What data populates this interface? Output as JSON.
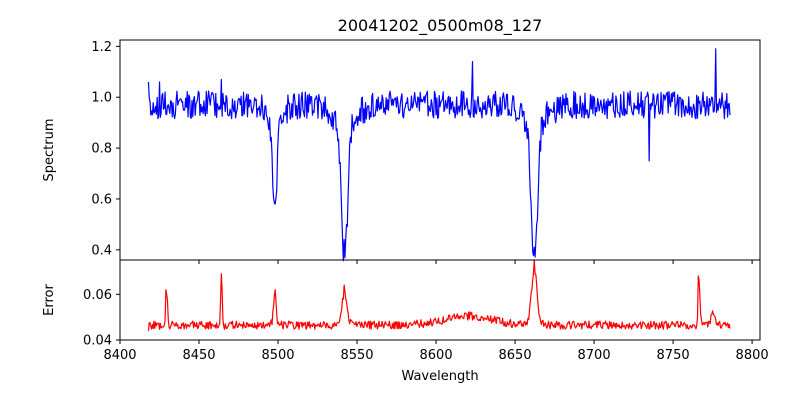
{
  "chart_data": [
    {
      "type": "line",
      "title": "20041202_0500m08_127",
      "xlabel": "",
      "ylabel": "Spectrum",
      "xlim": [
        8400,
        8805
      ],
      "ylim": [
        0.36,
        1.225
      ],
      "xticks": [
        8400,
        8450,
        8500,
        8550,
        8600,
        8650,
        8700,
        8750,
        8800
      ],
      "yticks": [
        0.4,
        0.6,
        0.8,
        1.0,
        1.2
      ],
      "ytick_labels": [
        "0.4",
        "0.6",
        "0.8",
        "1.0",
        "1.2"
      ],
      "grid": false,
      "series": [
        {
          "color": "#0000ff",
          "x_range": [
            8418,
            8786
          ],
          "continuum": 0.97,
          "noise_amplitude": 0.055,
          "features": [
            {
              "center": 8498.0,
              "depth": 0.39,
              "width": 1.4
            },
            {
              "center": 8542.1,
              "depth": 0.55,
              "width": 2.0
            },
            {
              "center": 8662.2,
              "depth": 0.56,
              "width": 2.0
            }
          ],
          "points": [
            {
              "x": 8418,
              "y": 1.06
            },
            {
              "x": 8425,
              "y": 1.06
            },
            {
              "x": 8464,
              "y": 1.07
            },
            {
              "x": 8498,
              "y": 0.58
            },
            {
              "x": 8542,
              "y": 0.44
            },
            {
              "x": 8623,
              "y": 1.14
            },
            {
              "x": 8662,
              "y": 0.41
            },
            {
              "x": 8735,
              "y": 0.75
            },
            {
              "x": 8777,
              "y": 1.19
            },
            {
              "x": 8786,
              "y": 0.93
            }
          ]
        }
      ]
    },
    {
      "type": "line",
      "title": "",
      "xlabel": "Wavelength",
      "ylabel": "Error",
      "xlim": [
        8400,
        8805
      ],
      "ylim": [
        0.04,
        0.075
      ],
      "xticks": [
        8400,
        8450,
        8500,
        8550,
        8600,
        8650,
        8700,
        8750,
        8800
      ],
      "xtick_labels": [
        "8400",
        "8450",
        "8500",
        "8550",
        "8600",
        "8650",
        "8700",
        "8750",
        "8800"
      ],
      "yticks": [
        0.04,
        0.06
      ],
      "ytick_labels": [
        "0.04",
        "0.06"
      ],
      "grid": false,
      "series": [
        {
          "color": "#ff0000",
          "x_range": [
            8418,
            8786
          ],
          "baseline": 0.0465,
          "noise_amplitude": 0.0018,
          "features": [
            {
              "center": 8429.5,
              "height": 0.014,
              "width": 0.6
            },
            {
              "center": 8464.2,
              "height": 0.021,
              "width": 0.5
            },
            {
              "center": 8498.0,
              "height": 0.013,
              "width": 0.9
            },
            {
              "center": 8542.1,
              "height": 0.014,
              "width": 1.6
            },
            {
              "center": 8662.2,
              "height": 0.024,
              "width": 1.8
            },
            {
              "center": 8766.5,
              "height": 0.019,
              "width": 0.6
            },
            {
              "center": 8775.0,
              "height": 0.007,
              "width": 1.0
            },
            {
              "center": 8620.0,
              "height": 0.004,
              "width": 15.0
            }
          ],
          "points": [
            {
              "x": 8418,
              "y": 0.044
            },
            {
              "x": 8429,
              "y": 0.062
            },
            {
              "x": 8464,
              "y": 0.069
            },
            {
              "x": 8498,
              "y": 0.062
            },
            {
              "x": 8542,
              "y": 0.064
            },
            {
              "x": 8662,
              "y": 0.075
            },
            {
              "x": 8766,
              "y": 0.068
            },
            {
              "x": 8786,
              "y": 0.045
            }
          ]
        }
      ]
    }
  ]
}
